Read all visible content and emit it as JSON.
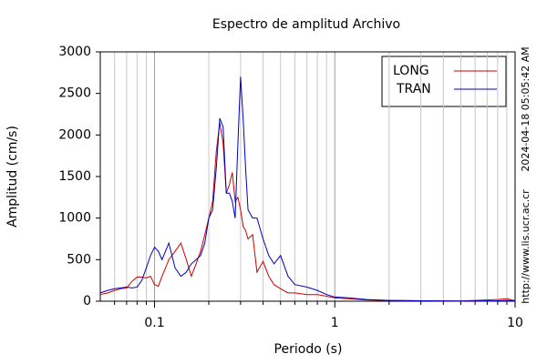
{
  "chart_data": {
    "type": "line",
    "title": "Espectro de amplitud Archivo",
    "x_label": "Periodo (s)",
    "y_label": "Amplitud (cm/s)",
    "timestamp": "2024-04-18 05:05:42 AM",
    "source": "http://www.lis.ucr.ac.cr",
    "x_log": true,
    "xlim": [
      0.05,
      10
    ],
    "ylim": [
      0,
      3000
    ],
    "xticks": [
      0.1,
      1,
      10
    ],
    "x_minor_ticks": [
      0.06,
      0.07,
      0.08,
      0.09,
      0.2,
      0.3,
      0.4,
      0.5,
      0.6,
      0.7,
      0.8,
      0.9,
      2,
      3,
      4,
      5,
      6,
      7,
      8,
      9
    ],
    "yticks": [
      0,
      500,
      1000,
      1500,
      2000,
      2500,
      3000
    ],
    "grid": true,
    "legend": "upper-right",
    "x": [
      0.05,
      0.055,
      0.06,
      0.065,
      0.07,
      0.075,
      0.08,
      0.085,
      0.09,
      0.095,
      0.1,
      0.105,
      0.11,
      0.115,
      0.12,
      0.13,
      0.14,
      0.15,
      0.16,
      0.17,
      0.18,
      0.19,
      0.2,
      0.21,
      0.22,
      0.23,
      0.24,
      0.25,
      0.26,
      0.27,
      0.28,
      0.29,
      0.3,
      0.31,
      0.32,
      0.33,
      0.35,
      0.37,
      0.4,
      0.43,
      0.46,
      0.5,
      0.55,
      0.6,
      0.7,
      0.8,
      0.9,
      1,
      1.2,
      1.5,
      2,
      3,
      5,
      8,
      9,
      10
    ],
    "series": [
      {
        "name": "LONG",
        "color": "#cc0000",
        "values": [
          80,
          100,
          130,
          150,
          160,
          240,
          290,
          290,
          280,
          300,
          200,
          180,
          300,
          400,
          500,
          600,
          700,
          500,
          300,
          450,
          600,
          800,
          1000,
          1200,
          1800,
          2150,
          1900,
          1300,
          1400,
          1550,
          1200,
          1250,
          1100,
          900,
          850,
          750,
          800,
          350,
          480,
          300,
          200,
          150,
          100,
          100,
          80,
          80,
          60,
          40,
          30,
          15,
          10,
          5,
          3,
          20,
          30,
          5
        ]
      },
      {
        "name": "TRAN",
        "color": "#0000bb",
        "values": [
          100,
          130,
          150,
          160,
          170,
          160,
          170,
          250,
          400,
          550,
          650,
          600,
          500,
          600,
          700,
          400,
          300,
          350,
          450,
          500,
          550,
          700,
          1000,
          1100,
          1600,
          2200,
          2100,
          1300,
          1300,
          1200,
          1000,
          1900,
          2700,
          2200,
          1600,
          1100,
          1000,
          1000,
          750,
          550,
          450,
          550,
          300,
          200,
          170,
          130,
          80,
          50,
          40,
          20,
          10,
          5,
          3,
          5,
          10,
          5
        ]
      }
    ]
  }
}
